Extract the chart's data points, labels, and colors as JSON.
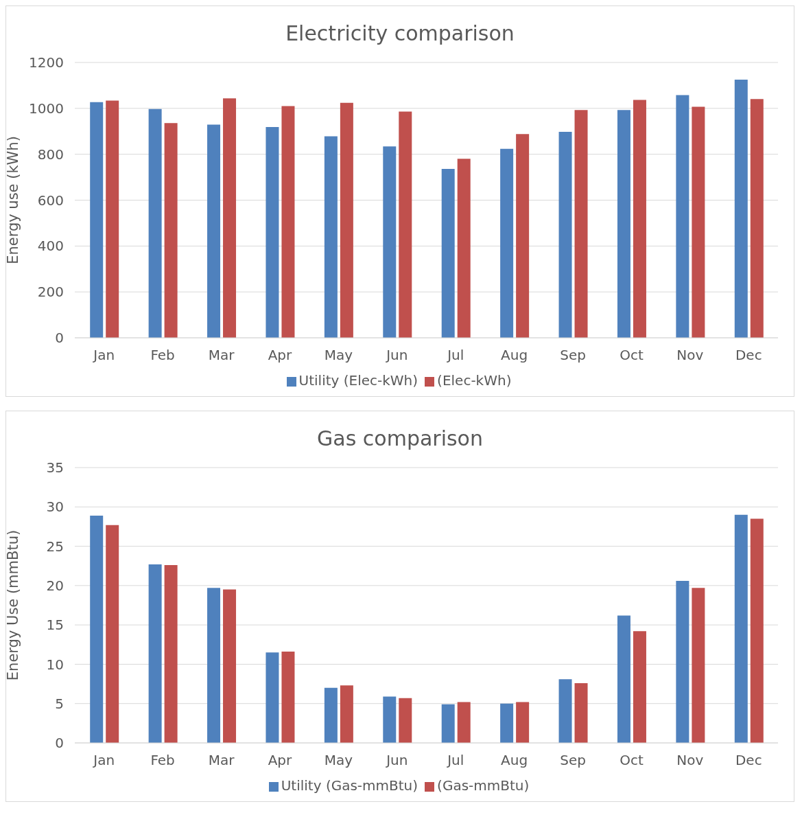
{
  "chart_data": [
    {
      "type": "bar",
      "title": "Electricity comparison",
      "ylabel": "Energy use (kWh)",
      "categories": [
        "Jan",
        "Feb",
        "Mar",
        "Apr",
        "May",
        "Jun",
        "Jul",
        "Aug",
        "Sep",
        "Oct",
        "Nov",
        "Dec"
      ],
      "series": [
        {
          "name": "Utility (Elec-kWh)",
          "color": "#4f81bd",
          "values": [
            1027,
            997,
            929,
            919,
            878,
            834,
            736,
            824,
            898,
            993,
            1058,
            1125
          ]
        },
        {
          "name": "(Elec-kWh)",
          "color": "#c0504d",
          "values": [
            1034,
            936,
            1044,
            1010,
            1024,
            986,
            780,
            888,
            993,
            1037,
            1007,
            1041
          ]
        }
      ],
      "ylim": [
        0,
        1200
      ],
      "yticks": [
        0,
        200,
        400,
        600,
        800,
        1000,
        1200
      ],
      "grid": "y",
      "legend": "bottom"
    },
    {
      "type": "bar",
      "title": "Gas comparison",
      "ylabel": "Energy Use (mmBtu)",
      "categories": [
        "Jan",
        "Feb",
        "Mar",
        "Apr",
        "May",
        "Jun",
        "Jul",
        "Aug",
        "Sep",
        "Oct",
        "Nov",
        "Dec"
      ],
      "series": [
        {
          "name": "Utility (Gas-mmBtu)",
          "color": "#4f81bd",
          "values": [
            28.9,
            22.7,
            19.7,
            11.5,
            7.0,
            5.9,
            4.9,
            5.0,
            8.1,
            16.2,
            20.6,
            29.0
          ]
        },
        {
          "name": "(Gas-mmBtu)",
          "color": "#c0504d",
          "values": [
            27.7,
            22.6,
            19.5,
            11.6,
            7.3,
            5.7,
            5.2,
            5.2,
            7.6,
            14.2,
            19.7,
            28.5
          ]
        }
      ],
      "ylim": [
        0,
        35
      ],
      "yticks": [
        0,
        5,
        10,
        15,
        20,
        25,
        30,
        35
      ],
      "grid": "y",
      "legend": "bottom"
    }
  ]
}
